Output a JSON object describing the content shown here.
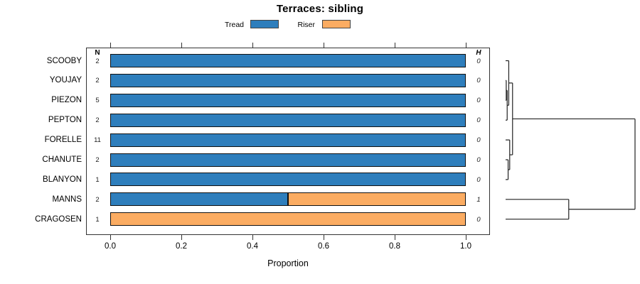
{
  "title": "Terraces: sibling",
  "legend": [
    {
      "label": "Tread",
      "color": "#2E7EBC"
    },
    {
      "label": "Riser",
      "color": "#FBAC62"
    }
  ],
  "colors": {
    "bar_border": "#111111",
    "box_border": "#333333",
    "dendrogram_line": "#222222",
    "background": "#ffffff"
  },
  "columns": {
    "n_header": "N",
    "h_header": "H"
  },
  "x_axis": {
    "label": "Proportion",
    "ticks": [
      "0.0",
      "0.2",
      "0.4",
      "0.6",
      "0.8",
      "1.0"
    ]
  },
  "chart_data": {
    "type": "bar",
    "orientation": "horizontal-stacked",
    "title": "Terraces: sibling",
    "xlabel": "Proportion",
    "xlim": [
      0,
      1
    ],
    "categories": [
      "SCOOBY",
      "YOUJAY",
      "PIEZON",
      "PEPTON",
      "FORELLE",
      "CHANUTE",
      "BLANYON",
      "MANNS",
      "CRAGOSEN"
    ],
    "series": [
      {
        "name": "Tread",
        "values": [
          1,
          1,
          1,
          1,
          1,
          1,
          1,
          0.5,
          0
        ]
      },
      {
        "name": "Riser",
        "values": [
          0,
          0,
          0,
          0,
          0,
          0,
          0,
          0.5,
          1
        ]
      }
    ],
    "n": [
      2,
      2,
      5,
      2,
      11,
      2,
      1,
      2,
      1
    ],
    "h": [
      0,
      0,
      0,
      0,
      0,
      0,
      0,
      1,
      0
    ],
    "legend_position": "top",
    "grid": false,
    "dendrogram": {
      "max_height": 2.05,
      "tree": {
        "h": 2.05,
        "children": [
          {
            "h": 0.11,
            "children": [
              {
                "h": 0.05,
                "children": [
                  {
                    "leaf": "SCOOBY"
                  },
                  {
                    "h": 0.025,
                    "children": [
                      {
                        "h": 0.01,
                        "children": [
                          {
                            "leaf": "YOUJAY"
                          },
                          {
                            "leaf": "PIEZON"
                          }
                        ]
                      },
                      {
                        "leaf": "PEPTON"
                      }
                    ]
                  }
                ]
              },
              {
                "h": 0.065,
                "children": [
                  {
                    "leaf": "FORELLE"
                  },
                  {
                    "h": 0.04,
                    "children": [
                      {
                        "leaf": "CHANUTE"
                      },
                      {
                        "leaf": "BLANYON"
                      }
                    ]
                  }
                ]
              }
            ]
          },
          {
            "h": 1.0,
            "children": [
              {
                "leaf": "MANNS"
              },
              {
                "leaf": "CRAGOSEN"
              }
            ]
          }
        ]
      }
    }
  }
}
